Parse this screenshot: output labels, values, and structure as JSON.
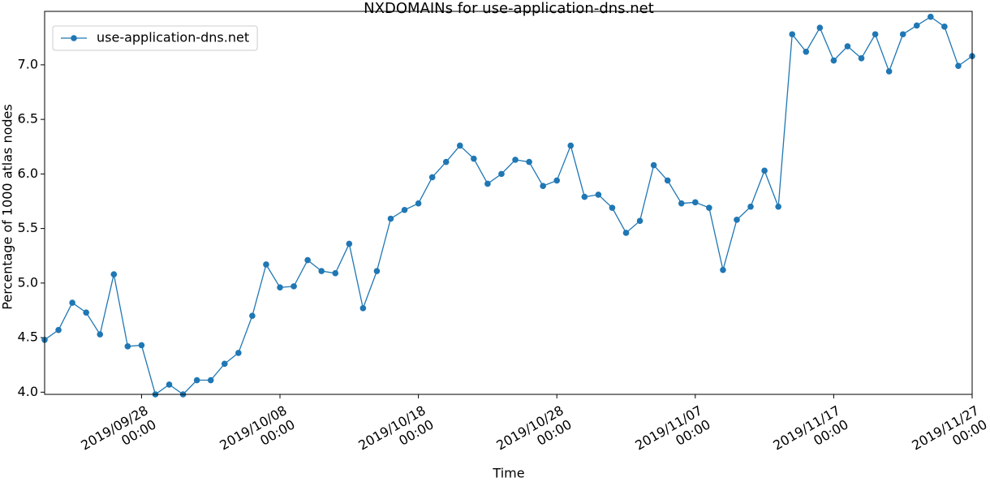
{
  "chart_data": {
    "type": "line",
    "title": "NXDOMAINs for use-application-dns.net",
    "x_label": "Time",
    "y_label": "Percentage of 1000 atlas nodes",
    "x": [
      "2019-09-21",
      "2019-09-22",
      "2019-09-23",
      "2019-09-24",
      "2019-09-25",
      "2019-09-26",
      "2019-09-27",
      "2019-09-28",
      "2019-09-29",
      "2019-09-30",
      "2019-10-01",
      "2019-10-02",
      "2019-10-03",
      "2019-10-04",
      "2019-10-05",
      "2019-10-06",
      "2019-10-07",
      "2019-10-08",
      "2019-10-09",
      "2019-10-10",
      "2019-10-11",
      "2019-10-12",
      "2019-10-13",
      "2019-10-14",
      "2019-10-15",
      "2019-10-16",
      "2019-10-17",
      "2019-10-18",
      "2019-10-19",
      "2019-10-20",
      "2019-10-21",
      "2019-10-22",
      "2019-10-23",
      "2019-10-24",
      "2019-10-25",
      "2019-10-26",
      "2019-10-27",
      "2019-10-28",
      "2019-10-29",
      "2019-10-30",
      "2019-10-31",
      "2019-11-01",
      "2019-11-02",
      "2019-11-03",
      "2019-11-04",
      "2019-11-05",
      "2019-11-06",
      "2019-11-07",
      "2019-11-08",
      "2019-11-09",
      "2019-11-10",
      "2019-11-11",
      "2019-11-12",
      "2019-11-13",
      "2019-11-14",
      "2019-11-15",
      "2019-11-16",
      "2019-11-17",
      "2019-11-18",
      "2019-11-19",
      "2019-11-20",
      "2019-11-21",
      "2019-11-22",
      "2019-11-23",
      "2019-11-24",
      "2019-11-25",
      "2019-11-26",
      "2019-11-27"
    ],
    "series": [
      {
        "name": "use-application-dns.net",
        "color": "#1f77b4",
        "values": [
          4.48,
          4.57,
          4.82,
          4.73,
          4.53,
          5.08,
          4.42,
          4.43,
          3.98,
          4.07,
          3.98,
          4.11,
          4.11,
          4.26,
          4.36,
          4.7,
          5.17,
          4.96,
          4.97,
          5.21,
          5.11,
          5.09,
          5.36,
          4.77,
          5.11,
          5.59,
          5.67,
          5.73,
          5.97,
          6.11,
          6.26,
          6.14,
          5.91,
          6.0,
          6.13,
          6.11,
          5.89,
          5.94,
          6.26,
          5.79,
          5.81,
          5.69,
          5.46,
          5.57,
          6.08,
          5.94,
          5.73,
          5.74,
          5.69,
          5.12,
          5.58,
          5.7,
          6.03,
          5.7,
          7.28,
          7.12,
          7.34,
          7.04,
          7.17,
          7.06,
          7.28,
          6.94,
          7.28,
          7.36,
          7.44,
          7.35,
          6.99,
          7.08
        ]
      }
    ],
    "xlim": [
      "2019-09-21",
      "2019-11-27"
    ],
    "xticks": [
      {
        "value": "2019-09-28",
        "label": "2019/09/28\n00:00"
      },
      {
        "value": "2019-10-08",
        "label": "2019/10/08\n00:00"
      },
      {
        "value": "2019-10-18",
        "label": "2019/10/18\n00:00"
      },
      {
        "value": "2019-10-28",
        "label": "2019/10/28\n00:00"
      },
      {
        "value": "2019-11-07",
        "label": "2019/11/07\n00:00"
      },
      {
        "value": "2019-11-17",
        "label": "2019/11/17\n00:00"
      },
      {
        "value": "2019-11-27",
        "label": "2019/11/27\n00:00"
      }
    ],
    "ylim": [
      3.98,
      7.49
    ],
    "yticks": [
      {
        "value": 4,
        "label": "4.0"
      },
      {
        "value": 4.5,
        "label": "4.5"
      },
      {
        "value": 5,
        "label": "5.0"
      },
      {
        "value": 5.5,
        "label": "5.5"
      },
      {
        "value": 6,
        "label": "6.0"
      },
      {
        "value": 6.5,
        "label": "6.5"
      },
      {
        "value": 7,
        "label": "7.0"
      }
    ],
    "legend": "upper left",
    "grid": false
  }
}
